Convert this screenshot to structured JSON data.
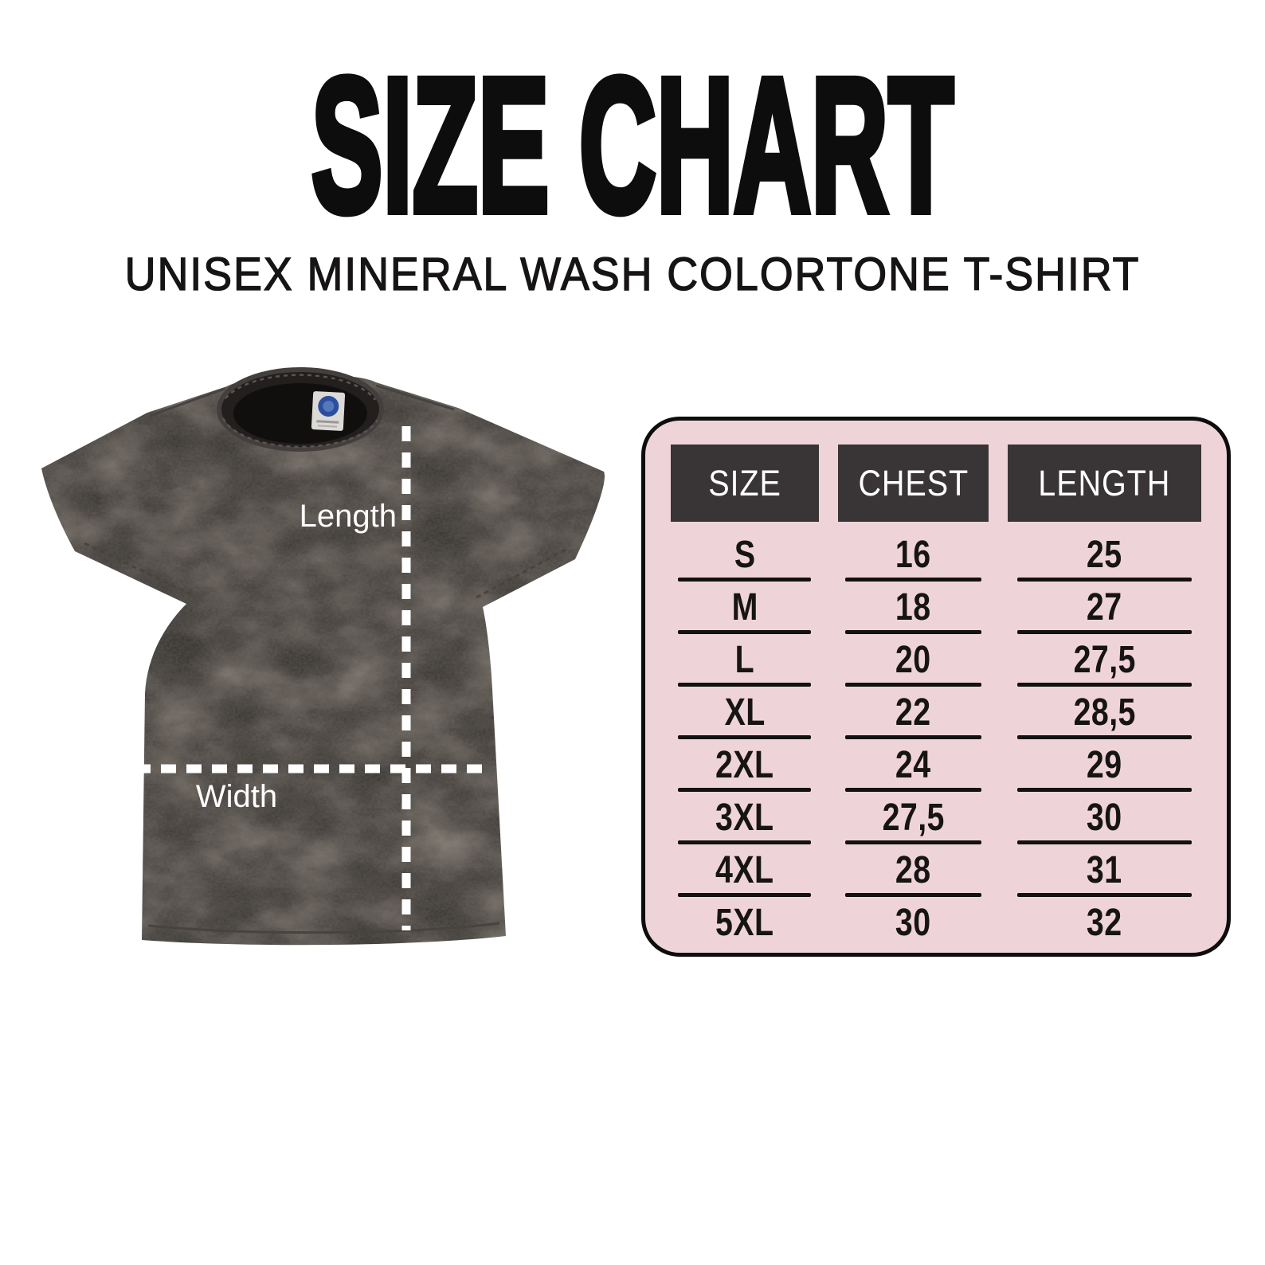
{
  "title": "SIZE CHART",
  "subtitle": "UNISEX MINERAL WASH COLORTONE T-SHIRT",
  "figure": {
    "garment": "unisex mineral wash colortone t-shirt (black mineral wash)",
    "length_label": "Length",
    "width_label": "Width"
  },
  "chart_data": {
    "type": "table",
    "title": "SIZE CHART",
    "subtitle": "UNISEX MINERAL WASH COLORTONE T-SHIRT",
    "columns": [
      "SIZE",
      "CHEST",
      "LENGTH"
    ],
    "rows": [
      [
        "S",
        "16",
        "25"
      ],
      [
        "M",
        "18",
        "27"
      ],
      [
        "L",
        "20",
        "27,5"
      ],
      [
        "XL",
        "22",
        "28,5"
      ],
      [
        "2XL",
        "24",
        "29"
      ],
      [
        "3XL",
        "27,5",
        "30"
      ],
      [
        "4XL",
        "28",
        "31"
      ],
      [
        "5XL",
        "30",
        "32"
      ]
    ]
  },
  "colors": {
    "title_text": "#0e0d0d",
    "panel_bg": "#eed4d9",
    "panel_border": "#0d0d0d",
    "header_bg": "#393536",
    "header_text": "#ffffff",
    "row_text": "#171414",
    "row_line": "#131111",
    "measure_line": "#ffffff",
    "shirt_base": "#2c2928"
  }
}
